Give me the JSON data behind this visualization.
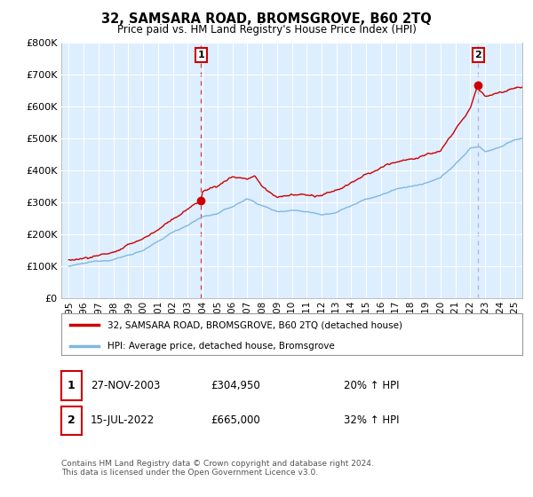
{
  "title": "32, SAMSARA ROAD, BROMSGROVE, B60 2TQ",
  "subtitle": "Price paid vs. HM Land Registry's House Price Index (HPI)",
  "legend_line1": "32, SAMSARA ROAD, BROMSGROVE, B60 2TQ (detached house)",
  "legend_line2": "HPI: Average price, detached house, Bromsgrove",
  "table_row1": [
    "1",
    "27-NOV-2003",
    "£304,950",
    "20% ↑ HPI"
  ],
  "table_row2": [
    "2",
    "15-JUL-2022",
    "£665,000",
    "32% ↑ HPI"
  ],
  "footnote": "Contains HM Land Registry data © Crown copyright and database right 2024.\nThis data is licensed under the Open Government Licence v3.0.",
  "sale1_x": 2003.9,
  "sale1_y": 304950,
  "sale2_x": 2022.54,
  "sale2_y": 665000,
  "annotation1": "1",
  "annotation2": "2",
  "hpi_color": "#7fb8e0",
  "price_color": "#cc0000",
  "sale2_vline_color": "#aaaacc",
  "annotation_border_color": "#cc0000",
  "ylim": [
    0,
    800000
  ],
  "xlim_start": 1994.5,
  "xlim_end": 2025.5,
  "background_color": "#ffffff",
  "plot_bg_color": "#ddeeff",
  "grid_color": "#ffffff",
  "yticks": [
    0,
    100000,
    200000,
    300000,
    400000,
    500000,
    600000,
    700000,
    800000
  ],
  "ytick_labels": [
    "£0",
    "£100K",
    "£200K",
    "£300K",
    "£400K",
    "£500K",
    "£600K",
    "£700K",
    "£800K"
  ],
  "xticks": [
    1995,
    1996,
    1997,
    1998,
    1999,
    2000,
    2001,
    2002,
    2003,
    2004,
    2005,
    2006,
    2007,
    2008,
    2009,
    2010,
    2011,
    2012,
    2013,
    2014,
    2015,
    2016,
    2017,
    2018,
    2019,
    2020,
    2021,
    2022,
    2023,
    2024,
    2025
  ],
  "hpi_base_values_x": [
    1995,
    1996,
    1997,
    1998,
    1999,
    2000,
    2001,
    2002,
    2003,
    2004,
    2005,
    2006,
    2007,
    2008,
    2009,
    2010,
    2011,
    2012,
    2013,
    2014,
    2015,
    2016,
    2017,
    2018,
    2019,
    2020,
    2021,
    2022,
    2022.6,
    2023,
    2024,
    2025
  ],
  "hpi_base_values_y": [
    100,
    105,
    112,
    122,
    135,
    152,
    175,
    205,
    230,
    255,
    265,
    285,
    310,
    290,
    270,
    278,
    275,
    268,
    278,
    298,
    315,
    328,
    345,
    355,
    362,
    375,
    420,
    468,
    475,
    460,
    475,
    500
  ],
  "prop_base_values_x": [
    1995,
    1996,
    1997,
    1998,
    1999,
    2000,
    2001,
    2002,
    2003,
    2003.9,
    2004,
    2005,
    2006,
    2007,
    2007.5,
    2008,
    2009,
    2010,
    2011,
    2012,
    2013,
    2014,
    2015,
    2016,
    2017,
    2018,
    2019,
    2020,
    2021,
    2022,
    2022.54,
    2022.6,
    2023,
    2024,
    2025
  ],
  "prop_base_values_y": [
    120,
    128,
    138,
    150,
    165,
    188,
    215,
    252,
    282,
    305,
    340,
    355,
    385,
    380,
    390,
    355,
    320,
    330,
    328,
    320,
    335,
    360,
    382,
    398,
    420,
    432,
    442,
    458,
    515,
    590,
    665,
    640,
    625,
    645,
    660
  ]
}
